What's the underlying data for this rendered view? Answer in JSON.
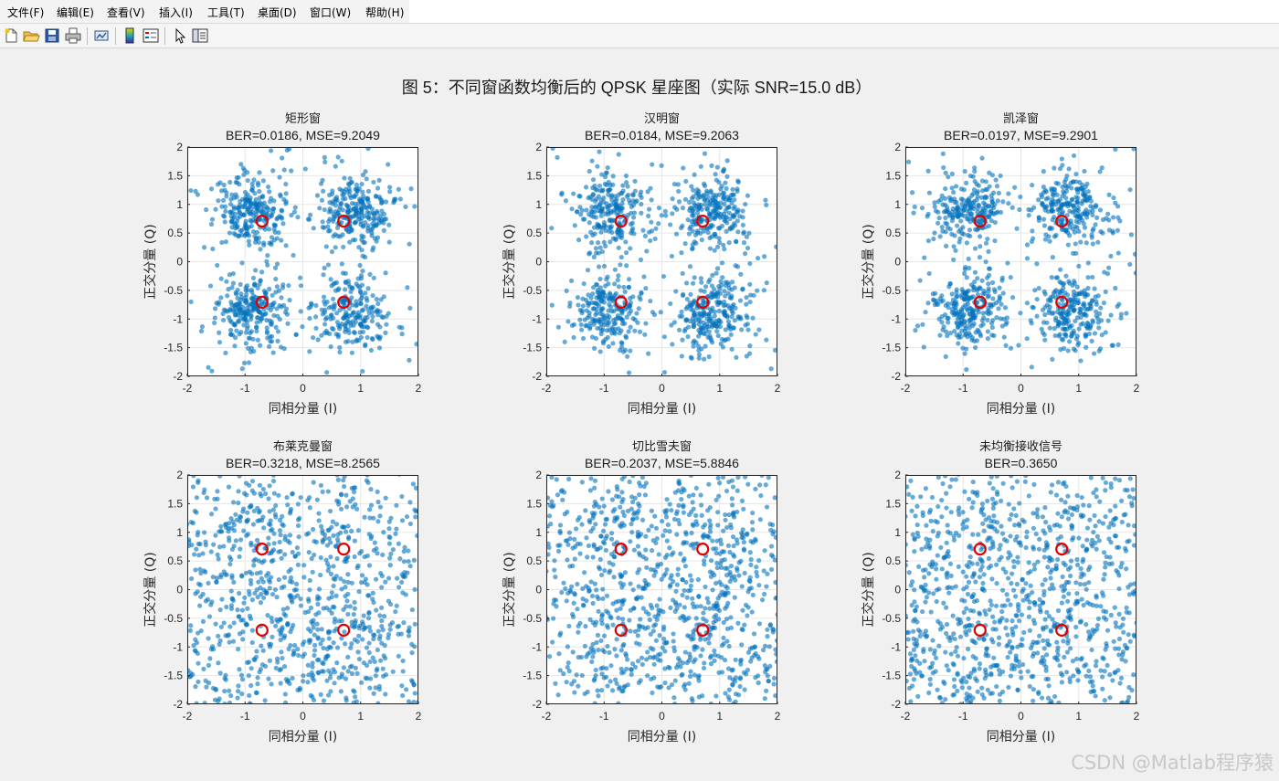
{
  "menu": {
    "items": [
      {
        "label": "文件(F)"
      },
      {
        "label": "编辑(E)"
      },
      {
        "label": "查看(V)"
      },
      {
        "label": "插入(I)"
      },
      {
        "label": "工具(T)"
      },
      {
        "label": "桌面(D)"
      },
      {
        "label": "窗口(W)"
      },
      {
        "label": "帮助(H)"
      }
    ]
  },
  "toolbar": {
    "icons": [
      "new-file-icon",
      "open-folder-icon",
      "save-icon",
      "print-icon",
      "link-plot-icon",
      "colorbar-icon",
      "legend-icon",
      "pointer-icon",
      "property-inspector-icon"
    ]
  },
  "figure": {
    "title": "图 5：不同窗函数均衡后的 QPSK 星座图（实际 SNR=15.0 dB）"
  },
  "colors": {
    "points": "#0072BD",
    "ideal": "#e00000",
    "axes_bg": "#ffffff",
    "grid": "#e6e6e6"
  },
  "chart_data": [
    {
      "type": "scatter",
      "title": "矩形窗",
      "subtitle": "BER=0.0186, MSE=9.2049",
      "xlabel": "同相分量 (I)",
      "ylabel": "正交分量 (Q)",
      "xlim": [
        -2,
        2
      ],
      "ylim": [
        -2,
        2
      ],
      "xticks": [
        -2,
        -1,
        0,
        1,
        2
      ],
      "yticks": [
        -2,
        -1.5,
        -1,
        -0.5,
        0,
        0.5,
        1,
        1.5,
        2
      ],
      "grid": true,
      "spread": 0.32,
      "uniform_frac": 0.08,
      "ideal_points": [
        [
          -0.707,
          0.707
        ],
        [
          0.707,
          0.707
        ],
        [
          -0.707,
          -0.707
        ],
        [
          0.707,
          -0.707
        ]
      ],
      "n_points": 1000
    },
    {
      "type": "scatter",
      "title": "汉明窗",
      "subtitle": "BER=0.0184, MSE=9.2063",
      "xlabel": "同相分量 (I)",
      "ylabel": "正交分量 (Q)",
      "xlim": [
        -2,
        2
      ],
      "ylim": [
        -2,
        2
      ],
      "xticks": [
        -2,
        -1,
        0,
        1,
        2
      ],
      "yticks": [
        -2,
        -1.5,
        -1,
        -0.5,
        0,
        0.5,
        1,
        1.5,
        2
      ],
      "grid": true,
      "spread": 0.32,
      "uniform_frac": 0.08,
      "ideal_points": [
        [
          -0.707,
          0.707
        ],
        [
          0.707,
          0.707
        ],
        [
          -0.707,
          -0.707
        ],
        [
          0.707,
          -0.707
        ]
      ],
      "n_points": 1000
    },
    {
      "type": "scatter",
      "title": "凯泽窗",
      "subtitle": "BER=0.0197, MSE=9.2901",
      "xlabel": "同相分量 (I)",
      "ylabel": "正交分量 (Q)",
      "xlim": [
        -2,
        2
      ],
      "ylim": [
        -2,
        2
      ],
      "xticks": [
        -2,
        -1,
        0,
        1,
        2
      ],
      "yticks": [
        -2,
        -1.5,
        -1,
        -0.5,
        0,
        0.5,
        1,
        1.5,
        2
      ],
      "grid": true,
      "spread": 0.32,
      "uniform_frac": 0.08,
      "ideal_points": [
        [
          -0.707,
          0.707
        ],
        [
          0.707,
          0.707
        ],
        [
          -0.707,
          -0.707
        ],
        [
          0.707,
          -0.707
        ]
      ],
      "n_points": 1000
    },
    {
      "type": "scatter",
      "title": "布莱克曼窗",
      "subtitle": "BER=0.3218, MSE=8.2565",
      "xlabel": "同相分量 (I)",
      "ylabel": "正交分量 (Q)",
      "xlim": [
        -2,
        2
      ],
      "ylim": [
        -2,
        2
      ],
      "xticks": [
        -2,
        -1,
        0,
        1,
        2
      ],
      "yticks": [
        -2,
        -1.5,
        -1,
        -0.5,
        0,
        0.5,
        1,
        1.5,
        2
      ],
      "grid": true,
      "spread": 0.75,
      "uniform_frac": 0.3,
      "ideal_points": [
        [
          -0.707,
          0.707
        ],
        [
          0.707,
          0.707
        ],
        [
          -0.707,
          -0.707
        ],
        [
          0.707,
          -0.707
        ]
      ],
      "n_points": 1000
    },
    {
      "type": "scatter",
      "title": "切比雪夫窗",
      "subtitle": "BER=0.2037, MSE=5.8846",
      "xlabel": "同相分量 (I)",
      "ylabel": "正交分量 (Q)",
      "xlim": [
        -2,
        2
      ],
      "ylim": [
        -2,
        2
      ],
      "xticks": [
        -2,
        -1,
        0,
        1,
        2
      ],
      "yticks": [
        -2,
        -1.5,
        -1,
        -0.5,
        0,
        0.5,
        1,
        1.5,
        2
      ],
      "grid": true,
      "spread": 0.65,
      "uniform_frac": 0.4,
      "ideal_points": [
        [
          -0.707,
          0.707
        ],
        [
          0.707,
          0.707
        ],
        [
          -0.707,
          -0.707
        ],
        [
          0.707,
          -0.707
        ]
      ],
      "n_points": 1000
    },
    {
      "type": "scatter",
      "title": "未均衡接收信号",
      "subtitle": "BER=0.3650",
      "xlabel": "同相分量 (I)",
      "ylabel": "正交分量 (Q)",
      "xlim": [
        -2,
        2
      ],
      "ylim": [
        -2,
        2
      ],
      "xticks": [
        -2,
        -1,
        0,
        1,
        2
      ],
      "yticks": [
        -2,
        -1.5,
        -1,
        -0.5,
        0,
        0.5,
        1,
        1.5,
        2
      ],
      "grid": true,
      "spread": 0.7,
      "uniform_frac": 0.7,
      "ideal_points": [
        [
          -0.707,
          0.707
        ],
        [
          0.707,
          0.707
        ],
        [
          -0.707,
          -0.707
        ],
        [
          0.707,
          -0.707
        ]
      ],
      "n_points": 1000
    }
  ],
  "watermark": "CSDN @Matlab程序猿"
}
